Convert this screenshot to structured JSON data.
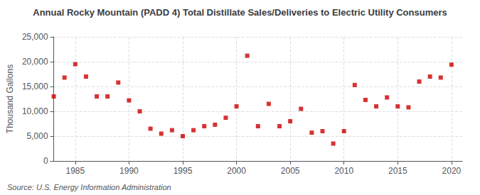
{
  "chart_data": {
    "type": "scatter",
    "title": "Annual Rocky Mountain (PADD 4) Total Distillate Sales/Deliveries to Electric Utility Consumers",
    "ylabel": "Thousand Gallons",
    "annotation": "Source: U.S. Energy Information Administration",
    "x": [
      1983,
      1984,
      1985,
      1986,
      1987,
      1988,
      1989,
      1990,
      1991,
      1992,
      1993,
      1994,
      1995,
      1996,
      1997,
      1998,
      1999,
      2000,
      2001,
      2002,
      2003,
      2004,
      2005,
      2006,
      2007,
      2008,
      2009,
      2010,
      2011,
      2012,
      2013,
      2014,
      2015,
      2016,
      2017,
      2018,
      2019,
      2020
    ],
    "values": [
      13000,
      16800,
      19500,
      17000,
      13000,
      13000,
      15800,
      12200,
      10000,
      6500,
      5500,
      6200,
      5000,
      6200,
      7000,
      7300,
      8700,
      11000,
      21200,
      7000,
      11500,
      7000,
      8000,
      10500,
      5700,
      6000,
      3500,
      6000,
      15300,
      12300,
      11000,
      12800,
      11000,
      10800,
      16000,
      17000,
      16800,
      19400
    ],
    "color": "#cc0000",
    "marker": "square",
    "xlim": [
      1983,
      2021
    ],
    "xticks": [
      1985,
      1990,
      1995,
      2000,
      2005,
      2010,
      2015,
      2020
    ],
    "ylim": [
      0,
      25000
    ],
    "yticks": [
      0,
      {
        "value": 5000,
        "label": "5,000"
      },
      {
        "value": 10000,
        "label": "10,000"
      },
      {
        "value": 15000,
        "label": "15,000"
      },
      {
        "value": 20000,
        "label": "20,000"
      },
      {
        "value": 25000,
        "label": "25,000"
      }
    ],
    "grid": true
  }
}
